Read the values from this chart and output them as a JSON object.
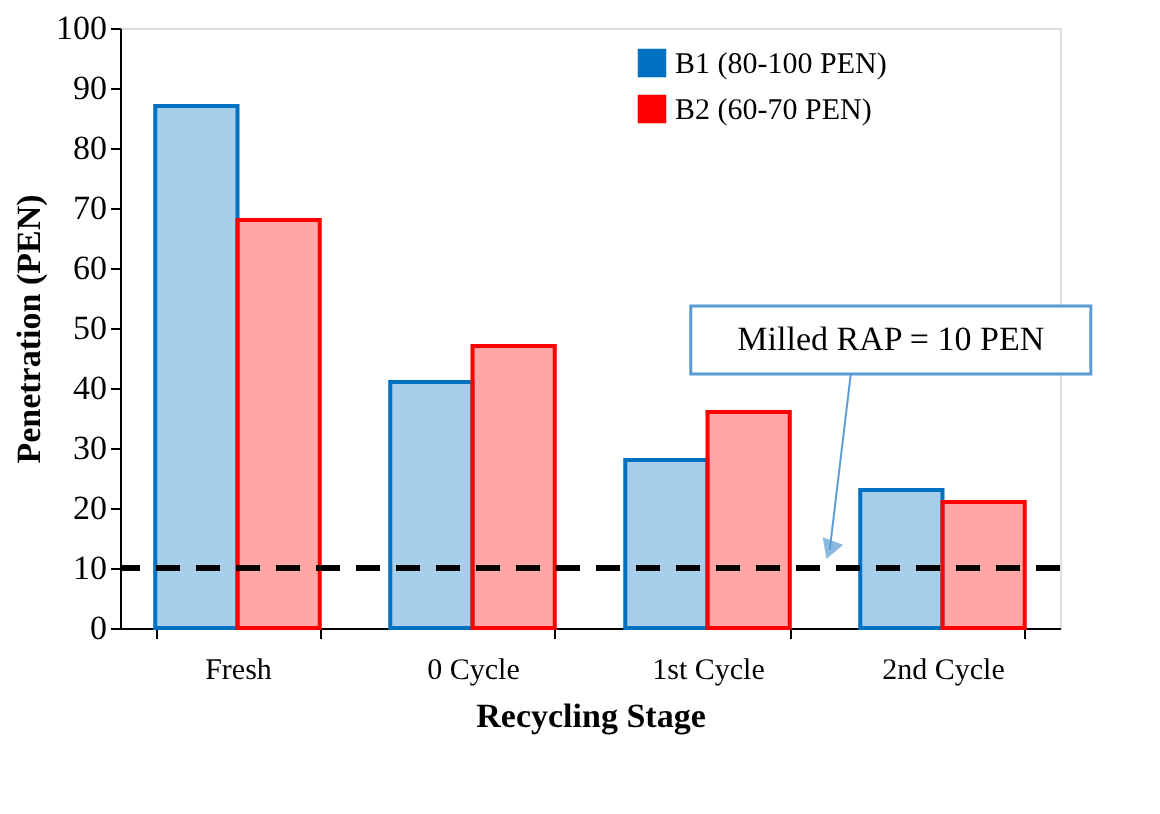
{
  "chart_data": {
    "type": "bar",
    "xlabel": "Recycling Stage",
    "ylabel": "Penetration (PEN)",
    "categories": [
      "Fresh",
      "0 Cycle",
      "1st Cycle",
      "2nd Cycle"
    ],
    "series": [
      {
        "name": "B1 (80-100 PEN)",
        "color": "#0070c0",
        "values": [
          87,
          41,
          28,
          23
        ]
      },
      {
        "name": "B2 (60-70 PEN)",
        "color": "#ff0000",
        "values": [
          68,
          47,
          36,
          21
        ]
      }
    ],
    "ylim": [
      0,
      100
    ],
    "yticks": [
      0,
      10,
      20,
      30,
      40,
      50,
      60,
      70,
      80,
      90,
      100
    ],
    "ref_lines": [
      {
        "axis": "y",
        "value": 10,
        "label": "Milled RAP = 10 PEN",
        "color": "#000000",
        "line_style": "dashed"
      }
    ],
    "grid": false,
    "legend": "top right"
  }
}
